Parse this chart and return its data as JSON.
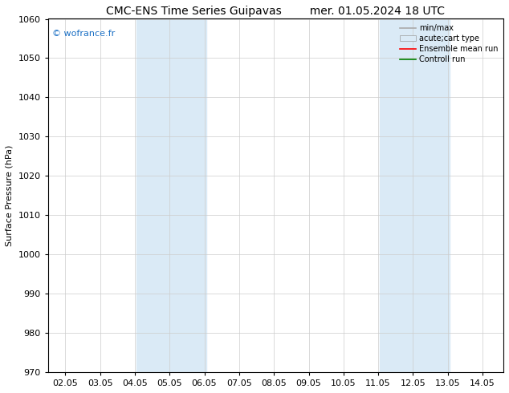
{
  "title_left": "CMC-ENS Time Series Guipavas",
  "title_right": "mer. 01.05.2024 18 UTC",
  "ylabel": "Surface Pressure (hPa)",
  "xlim": [
    1.5,
    14.6
  ],
  "ylim": [
    970,
    1060
  ],
  "yticks": [
    970,
    980,
    990,
    1000,
    1010,
    1020,
    1030,
    1040,
    1050,
    1060
  ],
  "xtick_labels": [
    "02.05",
    "03.05",
    "04.05",
    "05.05",
    "06.05",
    "07.05",
    "08.05",
    "09.05",
    "10.05",
    "11.05",
    "12.05",
    "13.05",
    "14.05"
  ],
  "xtick_positions": [
    2,
    3,
    4,
    5,
    6,
    7,
    8,
    9,
    10,
    11,
    12,
    13,
    14
  ],
  "shaded_bands": [
    {
      "xmin": 4.05,
      "xmax": 6.05,
      "color": "#daeaf6"
    },
    {
      "xmin": 11.05,
      "xmax": 13.05,
      "color": "#daeaf6"
    }
  ],
  "watermark_text": "© wofrance.fr",
  "watermark_color": "#1a6fc4",
  "legend_entries": [
    {
      "label": "min/max",
      "color": "#aaaaaa",
      "linestyle": "-",
      "linewidth": 1.2,
      "type": "line"
    },
    {
      "label": "acute;cart type",
      "color": "#daeaf6",
      "linestyle": "-",
      "linewidth": 8,
      "type": "patch"
    },
    {
      "label": "Ensemble mean run",
      "color": "red",
      "linestyle": "-",
      "linewidth": 1.2,
      "type": "line"
    },
    {
      "label": "Controll run",
      "color": "green",
      "linestyle": "-",
      "linewidth": 1.2,
      "type": "line"
    }
  ],
  "background_color": "#ffffff",
  "grid_color": "#cccccc",
  "title_fontsize": 10,
  "ylabel_fontsize": 8,
  "tick_labelsize": 8,
  "legend_fontsize": 7
}
